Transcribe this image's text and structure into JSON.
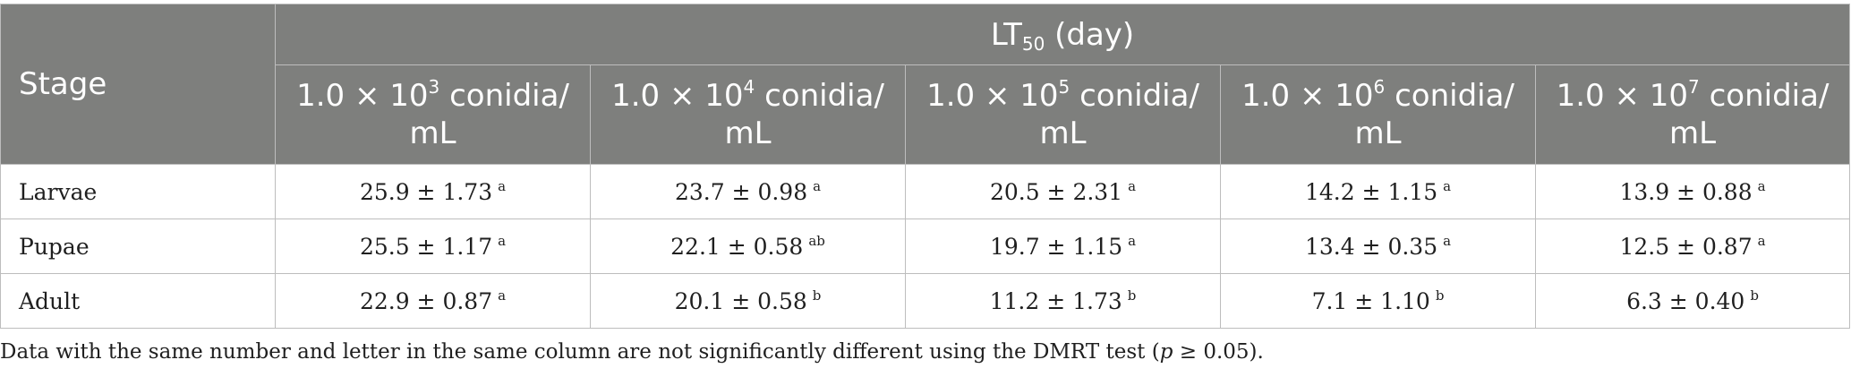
{
  "table": {
    "stage_header": "Stage",
    "group_header": {
      "main": "LT",
      "sub": "50",
      "unit": " (day)"
    },
    "columns": [
      {
        "prefix": "1.0 × 10",
        "exp": "3",
        "suffix": " conidia/",
        "line2": "mL"
      },
      {
        "prefix": "1.0 × 10",
        "exp": "4",
        "suffix": " conidia/",
        "line2": "mL"
      },
      {
        "prefix": "1.0 × 10",
        "exp": "5",
        "suffix": " conidia/",
        "line2": "mL"
      },
      {
        "prefix": "1.0 × 10",
        "exp": "6",
        "suffix": " conidia/",
        "line2": "mL"
      },
      {
        "prefix": "1.0 × 10",
        "exp": "7",
        "suffix": " conidia/",
        "line2": "mL"
      }
    ],
    "rows": [
      {
        "stage": "Larvae",
        "cells": [
          {
            "value": "25.9 ± 1.73",
            "sig": "a"
          },
          {
            "value": "23.7 ± 0.98",
            "sig": "a"
          },
          {
            "value": "20.5 ± 2.31",
            "sig": "a"
          },
          {
            "value": "14.2 ± 1.15",
            "sig": "a"
          },
          {
            "value": "13.9 ± 0.88",
            "sig": "a"
          }
        ]
      },
      {
        "stage": "Pupae",
        "cells": [
          {
            "value": "25.5 ± 1.17",
            "sig": "a"
          },
          {
            "value": "22.1 ± 0.58",
            "sig": "ab"
          },
          {
            "value": "19.7 ± 1.15",
            "sig": "a"
          },
          {
            "value": "13.4 ± 0.35",
            "sig": "a"
          },
          {
            "value": "12.5 ± 0.87",
            "sig": "a"
          }
        ]
      },
      {
        "stage": "Adult",
        "cells": [
          {
            "value": "22.9 ± 0.87",
            "sig": "a"
          },
          {
            "value": "20.1 ± 0.58",
            "sig": "b"
          },
          {
            "value": "11.2 ± 1.73",
            "sig": "b"
          },
          {
            "value": "7.1 ± 1.10",
            "sig": "b"
          },
          {
            "value": "6.3 ± 0.40",
            "sig": "b"
          }
        ]
      }
    ]
  },
  "footnote": {
    "before": "Data with the same number and letter in the same column are not significantly different using the DMRT test (",
    "italic": "p",
    "after": " ≥ 0.05)."
  },
  "colors": {
    "header_bg": "#7e7f7d",
    "border": "#bdbdbd"
  }
}
